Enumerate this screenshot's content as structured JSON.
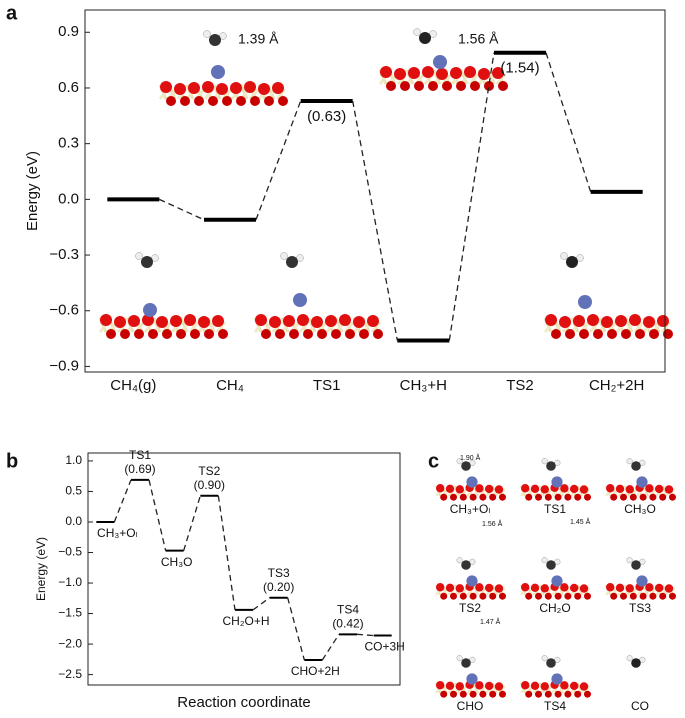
{
  "panel_labels": [
    "a",
    "b",
    "c"
  ],
  "chart_data": [
    {
      "type": "energy_profile",
      "ylabel": "Energy (eV)",
      "categories": [
        "CH₄(g)",
        "CH₄",
        "TS1",
        "CH₃+H",
        "TS2",
        "CH₂+2H"
      ],
      "values": [
        0,
        -0.11,
        0.53,
        -0.76,
        0.79,
        0.04
      ],
      "barrier_labels": [
        null,
        null,
        "(0.63)",
        null,
        "(1.54)",
        null
      ],
      "ylim": [
        -0.93,
        1.02
      ],
      "yticks": [
        {
          "value": -0.9,
          "label": "−0.9"
        },
        {
          "value": -0.6,
          "label": "−0.6"
        },
        {
          "value": -0.3,
          "label": "−0.3"
        },
        {
          "value": 0,
          "label": "0.0"
        },
        0.3,
        0.6,
        0.9
      ],
      "structure_labels": [
        "1.39 Å",
        "1.56 Å"
      ],
      "color": "#000000"
    },
    {
      "type": "energy_profile",
      "ylabel": "Energy (eV)",
      "xlabel": "Reaction coordinate",
      "categories": [
        "CH₃+Oₗ",
        "TS1",
        "CH₃O",
        "TS2",
        "CH₂O+H",
        "TS3",
        "CHO+2H",
        "TS4",
        "CO+3H"
      ],
      "values": [
        0,
        0.69,
        -0.47,
        0.43,
        -1.44,
        -1.24,
        -2.26,
        -1.84,
        -1.86
      ],
      "barrier_labels": [
        null,
        "(0.69)",
        null,
        "(0.90)",
        null,
        "(0.20)",
        null,
        "(0.42)",
        null
      ],
      "ylim": [
        -2.67,
        1.13
      ],
      "yticks": [
        {
          "value": -2.5,
          "label": "−2.5"
        },
        {
          "value": -2,
          "label": "−2.0"
        },
        {
          "value": -1.5,
          "label": "−1.5"
        },
        {
          "value": -1,
          "label": "−1.0"
        },
        {
          "value": -0.5,
          "label": "−0.5"
        },
        {
          "value": 0,
          "label": "0.0"
        },
        0.5,
        {
          "value": 1,
          "label": "1.0"
        }
      ],
      "color": "#000000"
    }
  ],
  "structures": {
    "labels": [
      "CH₃+Oₗ",
      "TS1",
      "CH₃O",
      "TS2",
      "CH₂O",
      "TS3",
      "CHO",
      "TS4",
      "CO"
    ],
    "distances": [
      "1.90 Å",
      "1.56 Å",
      "1.45 Å",
      "1.47 Å"
    ]
  }
}
